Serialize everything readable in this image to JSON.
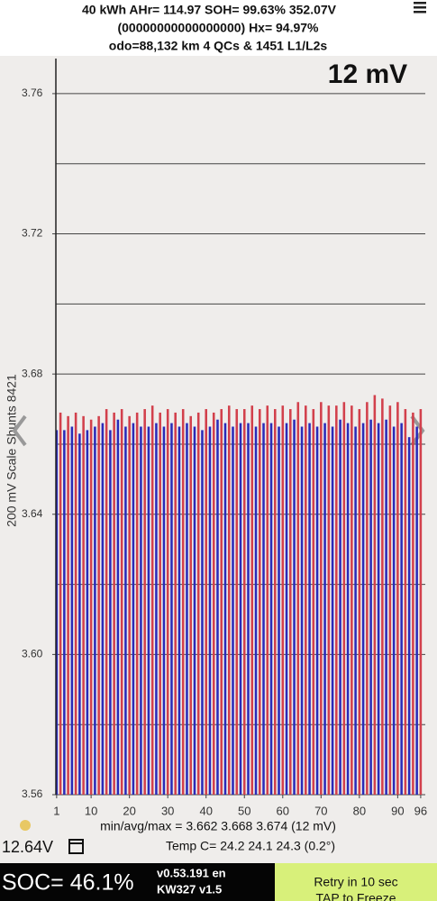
{
  "header": {
    "line1": "40 kWh  AHr= 114.97  SOH= 99.63%  352.07V",
    "line2": "(00000000000000000)  Hx= 94.97%",
    "line3": "odo=88,132 km 4 QCs & 1451 L1/L2s"
  },
  "chart_data": {
    "type": "bar",
    "range_label": "12 mV",
    "y_label": "200 mV Scale Shunts 8421",
    "x": [
      1,
      2,
      3,
      4,
      5,
      6,
      7,
      8,
      9,
      10,
      11,
      12,
      13,
      14,
      15,
      16,
      17,
      18,
      19,
      20,
      21,
      22,
      23,
      24,
      25,
      26,
      27,
      28,
      29,
      30,
      31,
      32,
      33,
      34,
      35,
      36,
      37,
      38,
      39,
      40,
      41,
      42,
      43,
      44,
      45,
      46,
      47,
      48,
      49,
      50,
      51,
      52,
      53,
      54,
      55,
      56,
      57,
      58,
      59,
      60,
      61,
      62,
      63,
      64,
      65,
      66,
      67,
      68,
      69,
      70,
      71,
      72,
      73,
      74,
      75,
      76,
      77,
      78,
      79,
      80,
      81,
      82,
      83,
      84,
      85,
      86,
      87,
      88,
      89,
      90,
      91,
      92,
      93,
      94,
      95,
      96
    ],
    "values": [
      3.664,
      3.669,
      3.664,
      3.668,
      3.665,
      3.669,
      3.663,
      3.668,
      3.664,
      3.667,
      3.665,
      3.668,
      3.666,
      3.67,
      3.664,
      3.669,
      3.667,
      3.67,
      3.665,
      3.668,
      3.666,
      3.669,
      3.665,
      3.67,
      3.665,
      3.671,
      3.666,
      3.669,
      3.665,
      3.67,
      3.666,
      3.669,
      3.665,
      3.67,
      3.666,
      3.668,
      3.665,
      3.669,
      3.664,
      3.67,
      3.665,
      3.669,
      3.667,
      3.67,
      3.666,
      3.671,
      3.665,
      3.67,
      3.666,
      3.67,
      3.666,
      3.671,
      3.665,
      3.67,
      3.666,
      3.671,
      3.666,
      3.67,
      3.665,
      3.671,
      3.666,
      3.67,
      3.667,
      3.672,
      3.665,
      3.671,
      3.666,
      3.67,
      3.665,
      3.672,
      3.666,
      3.671,
      3.665,
      3.671,
      3.667,
      3.672,
      3.666,
      3.671,
      3.665,
      3.67,
      3.666,
      3.672,
      3.667,
      3.674,
      3.666,
      3.673,
      3.667,
      3.671,
      3.665,
      3.672,
      3.666,
      3.67,
      3.662,
      3.669,
      3.665,
      3.67
    ],
    "bar_colors": [
      "#2a2ab8",
      "#d2404c"
    ],
    "xlim": [
      0.8,
      97.2
    ],
    "xticks": [
      1,
      10,
      20,
      30,
      40,
      50,
      60,
      70,
      80,
      90,
      96
    ],
    "ylim": [
      3.56,
      3.77
    ],
    "yticks": [
      3.56,
      {
        "value": 3.6,
        "label": "3.60"
      },
      3.64,
      3.68,
      3.72,
      3.76
    ],
    "ygrid": [
      3.56,
      3.58,
      3.6,
      3.62,
      3.64,
      3.66,
      3.68,
      3.7,
      3.72,
      3.74,
      3.76
    ]
  },
  "footer": {
    "stats": "min/avg/max = 3.662 3.668 3.674 (12 mV)",
    "aux_voltage": "12.64V",
    "temp": "Temp C= 24.2  24.1  24.3  (0.2°)",
    "soc": "SOC= 46.1%",
    "version": "v0.53.191 en",
    "model": "KW327 v1.5",
    "retry": "Retry in 10 sec",
    "tap": "TAP to Freeze"
  }
}
